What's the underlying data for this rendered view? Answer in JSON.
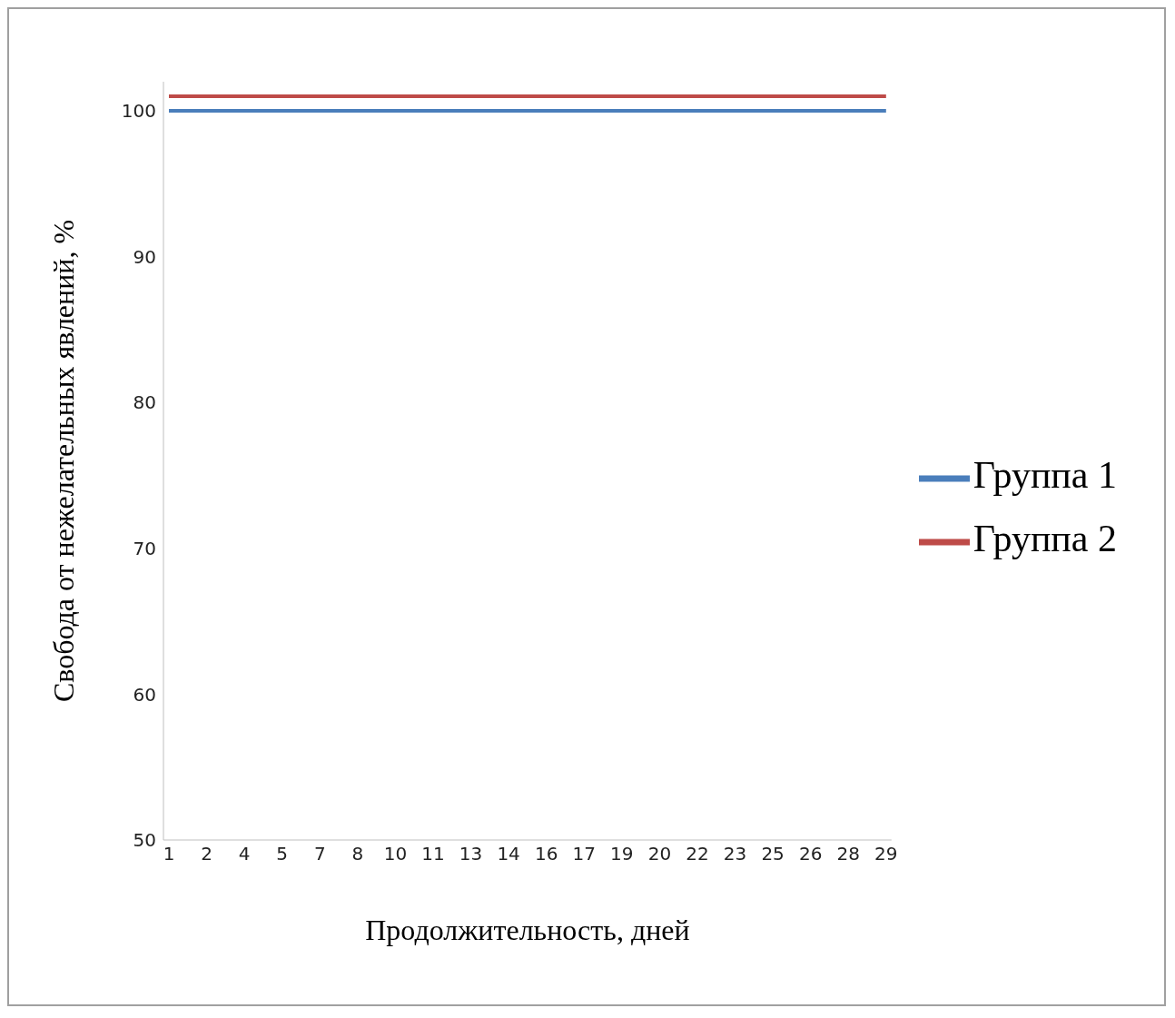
{
  "chart_data": {
    "type": "line",
    "xlabel": "Продолжительность, дней",
    "ylabel": "Свобода от нежелательных явлений, %",
    "categories": [
      "1",
      "2",
      "4",
      "5",
      "7",
      "8",
      "10",
      "11",
      "13",
      "14",
      "16",
      "17",
      "19",
      "20",
      "22",
      "23",
      "25",
      "26",
      "28",
      "29"
    ],
    "series": [
      {
        "name": "Группа 1",
        "color": "#4a7ebb",
        "values": [
          100,
          100,
          100,
          100,
          100,
          100,
          100,
          100,
          100,
          100,
          100,
          100,
          100,
          100,
          100,
          100,
          100,
          100,
          100,
          100
        ]
      },
      {
        "name": "Группа 2",
        "color": "#be4b48",
        "values": [
          101,
          101,
          101,
          101,
          101,
          101,
          101,
          101,
          101,
          101,
          101,
          101,
          101,
          101,
          101,
          101,
          101,
          101,
          101,
          101
        ]
      }
    ],
    "ylim": [
      50,
      102
    ],
    "yticks": [
      50,
      60,
      70,
      80,
      90,
      100
    ],
    "grid": false,
    "legend": "right",
    "marker": "none",
    "line_style": "solid"
  }
}
